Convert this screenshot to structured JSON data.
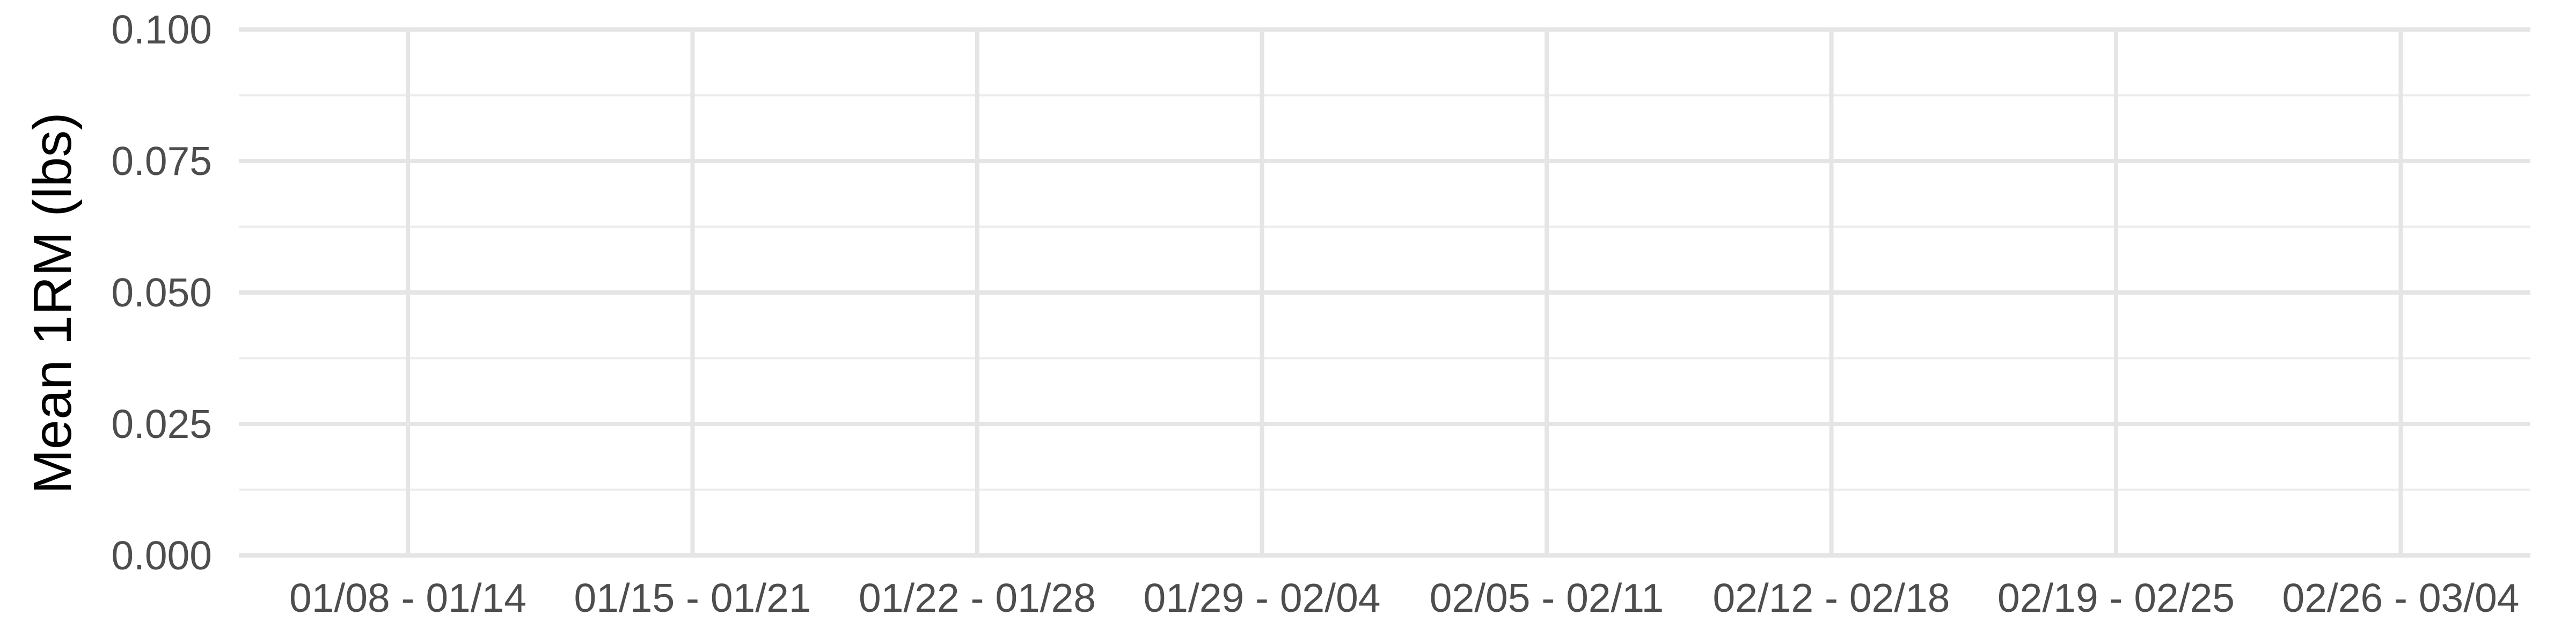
{
  "chart_data": {
    "type": "line",
    "title": "",
    "xlabel": "",
    "ylabel": "Mean 1RM (lbs)",
    "categories": [
      "01/08 - 01/14",
      "01/15 - 01/21",
      "01/22 - 01/28",
      "01/29 - 02/04",
      "02/05 - 02/11",
      "02/12 - 02/18",
      "02/19 - 02/25",
      "02/26 - 03/04"
    ],
    "y_ticks": [
      "0.000",
      "0.025",
      "0.050",
      "0.075",
      "0.100"
    ],
    "ylim": [
      0,
      0.1
    ],
    "grid": true,
    "legend": "none",
    "series": [],
    "colors": {
      "grid": "#e5e5e5",
      "tick_text": "#4d4d4d",
      "axis_title": "#000000",
      "background": "#ffffff"
    }
  }
}
